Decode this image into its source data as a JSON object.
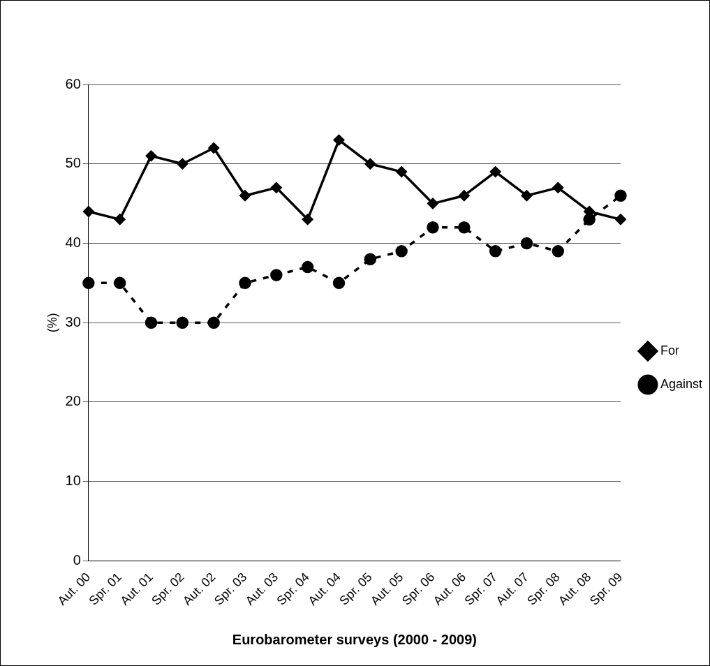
{
  "chart_data": {
    "type": "line",
    "xlabel": "Eurobarometer surveys (2000 - 2009)",
    "ylabel": "(%)",
    "categories": [
      "Aut. 00",
      "Spr. 01",
      "Aut. 01",
      "Spr. 02",
      "Aut. 02",
      "Spr. 03",
      "Aut. 03",
      "Spr. 04",
      "Aut. 04",
      "Spr. 05",
      "Aut. 05",
      "Spr. 06",
      "Aut. 06",
      "Spr. 07",
      "Aut. 07",
      "Spr. 08",
      "Aut. 08",
      "Spr. 09"
    ],
    "series": [
      {
        "name": "For",
        "color": "#000000",
        "marker": "diamond",
        "line_style": "solid",
        "values": [
          44,
          43,
          51,
          50,
          52,
          46,
          47,
          43,
          53,
          50,
          49,
          45,
          46,
          49,
          46,
          47,
          44,
          43
        ]
      },
      {
        "name": "Against",
        "color": "#000000",
        "marker": "circle",
        "line_style": "dashed",
        "values": [
          35,
          35,
          30,
          30,
          30,
          35,
          36,
          37,
          35,
          38,
          39,
          42,
          42,
          39,
          40,
          39,
          43,
          46
        ]
      }
    ],
    "ylim": [
      0,
      60
    ],
    "yticks": [
      0,
      10,
      20,
      30,
      40,
      50,
      60
    ],
    "grid": "y",
    "legend": "right"
  }
}
